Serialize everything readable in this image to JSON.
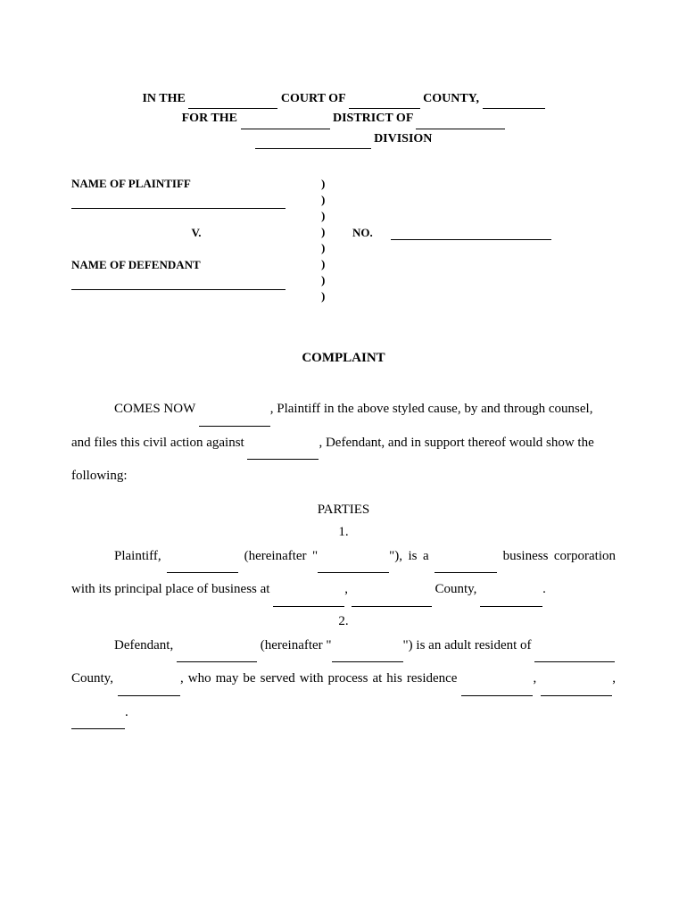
{
  "header": {
    "line1_a": "IN THE",
    "line1_b": "COURT OF",
    "line1_c": "COUNTY,",
    "line2_a": "FOR THE",
    "line2_b": "DISTRICT OF",
    "line3": "DIVISION"
  },
  "caption": {
    "plaintiff_label": "NAME OF PLAINTIFF",
    "vs": "V.",
    "defendant_label": "NAME OF DEFENDANT",
    "no_label": "NO."
  },
  "title": "COMPLAINT",
  "para1_a": "COMES NOW ",
  "para1_b": ", Plaintiff in the above styled cause, by and through counsel,",
  "para1_c": "and files this civil action against ",
  "para1_d": ", Defendant, and in support thereof would show the",
  "para1_e": "following:",
  "parties_heading": "PARTIES",
  "num1": "1.",
  "p1_a": "Plaintiff, ",
  "p1_b": " (hereinafter \"",
  "p1_c": "\"), is a ",
  "p1_d": " business corporation",
  "p1_e": "with its principal place of business at ",
  "p1_f": ", ",
  "p1_g": " County, ",
  "p1_h": ".",
  "num2": "2.",
  "p2_a": "Defendant, ",
  "p2_b": " (hereinafter \"",
  "p2_c": "\") is an adult resident of ",
  "p2_d": "County, ",
  "p2_e": ", who may be served with process at his residence ",
  "p2_f": ", ",
  "p2_g": ",",
  "p2_h": "."
}
